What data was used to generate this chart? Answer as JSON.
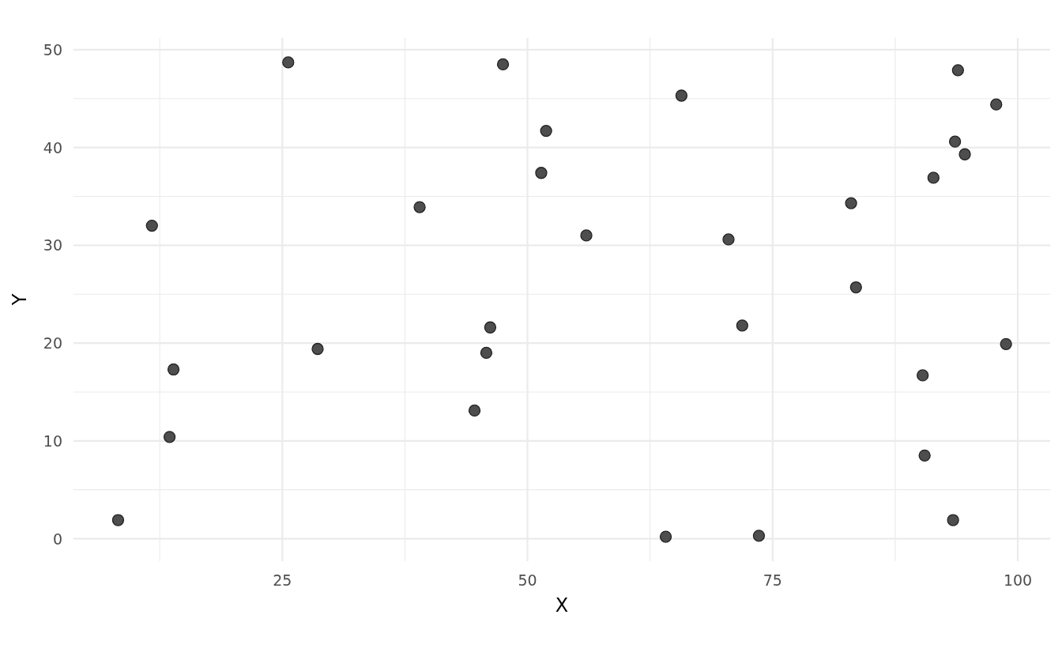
{
  "chart_data": {
    "type": "scatter",
    "xlabel": "X",
    "ylabel": "Y",
    "x": [
      8.25,
      11.7,
      13.5,
      13.9,
      25.6,
      28.6,
      39.0,
      44.6,
      45.8,
      46.2,
      47.5,
      51.4,
      51.9,
      56.0,
      64.1,
      65.7,
      70.5,
      71.9,
      73.6,
      83.0,
      83.5,
      90.3,
      90.5,
      91.4,
      93.4,
      93.6,
      93.9,
      94.6,
      97.8,
      98.8
    ],
    "series": [
      {
        "color": "#454545",
        "values": [
          1.9,
          32.0,
          10.4,
          17.3,
          48.7,
          19.4,
          33.9,
          13.1,
          19.0,
          21.6,
          48.5,
          37.4,
          41.7,
          31.0,
          0.2,
          45.3,
          30.6,
          21.8,
          0.3,
          34.3,
          25.7,
          16.7,
          8.5,
          36.9,
          1.9,
          40.6,
          47.9,
          39.3,
          44.4,
          19.9
        ]
      }
    ],
    "xlim": [
      3.7,
      103.3
    ],
    "ylim": [
      -2.3,
      51.2
    ],
    "xticks": [
      {
        "value": 12.5,
        "label": null
      },
      25,
      {
        "value": 37.5,
        "label": null
      },
      50,
      {
        "value": 62.5,
        "label": null
      },
      75,
      {
        "value": 87.5,
        "label": null
      },
      100
    ],
    "yticks": [
      0,
      {
        "value": 5,
        "label": null
      },
      10,
      {
        "value": 15,
        "label": null
      },
      20,
      {
        "value": 25,
        "label": null
      },
      30,
      {
        "value": 35,
        "label": null
      },
      40,
      {
        "value": 45,
        "label": null
      },
      50
    ],
    "grid": true,
    "marker": "circle"
  }
}
